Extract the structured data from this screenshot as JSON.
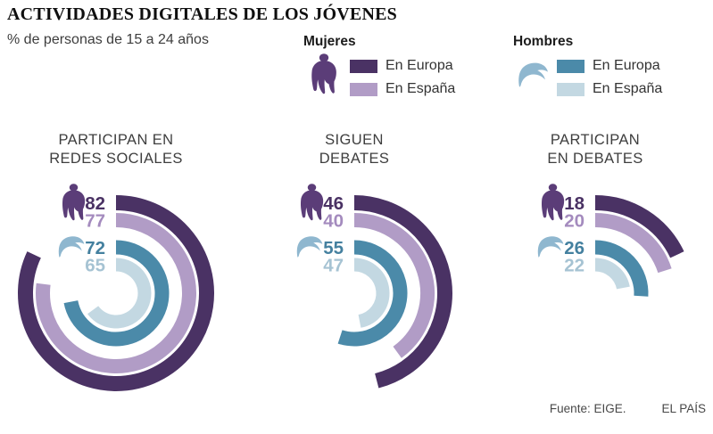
{
  "title": "ACTIVIDADES DIGITALES DE LOS JÓVENES",
  "subtitle": "% de personas de 15 a 24 años",
  "icons": {
    "woman": {
      "name": "woman-icon",
      "color": "#5b3d78"
    },
    "man": {
      "name": "man-icon",
      "color": "#8fb7cf"
    }
  },
  "legend": {
    "women": {
      "label": "Mujeres",
      "items": [
        {
          "label": "En Europa",
          "color": "#4a3264"
        },
        {
          "label": "En España",
          "color": "#b19cc6"
        }
      ]
    },
    "men": {
      "label": "Hombres",
      "items": [
        {
          "label": "En Europa",
          "color": "#4b8aa9"
        },
        {
          "label": "En España",
          "color": "#c3d8e2"
        }
      ]
    }
  },
  "source": {
    "fuente": "Fuente: EIGE.",
    "credit": "EL PAÍS"
  },
  "chart_data": [
    {
      "type": "radial-bar",
      "title_lines": [
        "PARTICIPAN EN",
        "REDES SOCIALES"
      ],
      "max": 100,
      "start_angle_deg": 0,
      "direction": "clockwise",
      "series": [
        {
          "id": "mujeres-europa",
          "name": "Mujeres · En Europa",
          "value": 82,
          "color": "#4a3264",
          "label_color": "#4a3264"
        },
        {
          "id": "mujeres-espana",
          "name": "Mujeres · En España",
          "value": 77,
          "color": "#b19cc6",
          "label_color": "#a48bbe"
        },
        {
          "id": "hombres-europa",
          "name": "Hombres · En Europa",
          "value": 72,
          "color": "#4b8aa9",
          "label_color": "#44809f"
        },
        {
          "id": "hombres-espana",
          "name": "Hombres · En España",
          "value": 65,
          "color": "#c3d8e2",
          "label_color": "#a6c3d3"
        }
      ]
    },
    {
      "type": "radial-bar",
      "title_lines": [
        "SIGUEN",
        "DEBATES"
      ],
      "max": 100,
      "start_angle_deg": 0,
      "direction": "clockwise",
      "series": [
        {
          "id": "mujeres-europa",
          "name": "Mujeres · En Europa",
          "value": 46,
          "color": "#4a3264",
          "label_color": "#4a3264"
        },
        {
          "id": "mujeres-espana",
          "name": "Mujeres · En España",
          "value": 40,
          "color": "#b19cc6",
          "label_color": "#a48bbe"
        },
        {
          "id": "hombres-europa",
          "name": "Hombres · En Europa",
          "value": 55,
          "color": "#4b8aa9",
          "label_color": "#44809f"
        },
        {
          "id": "hombres-espana",
          "name": "Hombres · En España",
          "value": 47,
          "color": "#c3d8e2",
          "label_color": "#a6c3d3"
        }
      ]
    },
    {
      "type": "radial-bar",
      "title_lines": [
        "PARTICIPAN",
        "EN DEBATES"
      ],
      "max": 100,
      "start_angle_deg": 0,
      "direction": "clockwise",
      "series": [
        {
          "id": "mujeres-europa",
          "name": "Mujeres · En Europa",
          "value": 18,
          "color": "#4a3264",
          "label_color": "#4a3264"
        },
        {
          "id": "mujeres-espana",
          "name": "Mujeres · En España",
          "value": 20,
          "color": "#b19cc6",
          "label_color": "#a48bbe"
        },
        {
          "id": "hombres-europa",
          "name": "Hombres · En Europa",
          "value": 26,
          "color": "#4b8aa9",
          "label_color": "#44809f"
        },
        {
          "id": "hombres-espana",
          "name": "Hombres · En España",
          "value": 22,
          "color": "#c3d8e2",
          "label_color": "#a6c3d3"
        }
      ]
    }
  ]
}
